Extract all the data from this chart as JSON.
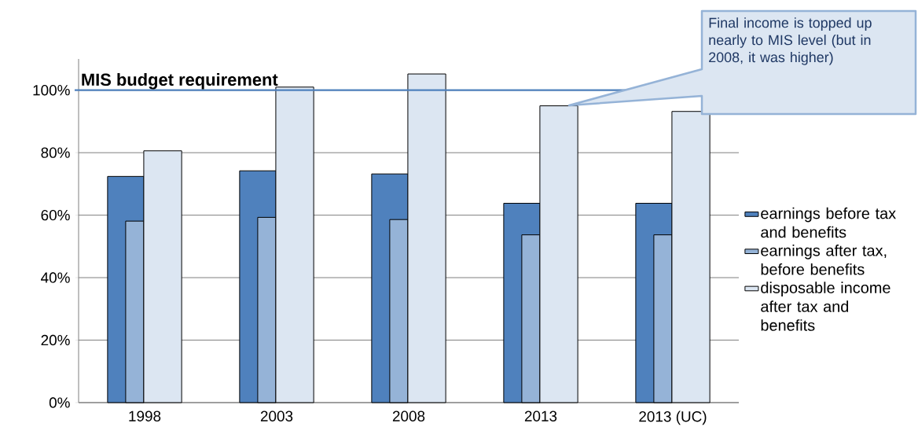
{
  "chart_data": {
    "type": "bar",
    "categories": [
      "1998",
      "2003",
      "2008",
      "2013",
      "2013 (UC)"
    ],
    "series": [
      {
        "name": "earnings before tax and benefits",
        "color": "#4f81bd",
        "values": [
          72.4,
          74.2,
          73.2,
          63.8,
          63.8
        ]
      },
      {
        "name": "earnings after tax, before benefits",
        "color": "#95b3d7",
        "values": [
          58.1,
          59.3,
          58.6,
          53.7,
          53.7
        ]
      },
      {
        "name": "disposable income after tax and benefits",
        "color": "#dce6f2",
        "values": [
          80.6,
          101.0,
          105.2,
          95.0,
          93.2
        ]
      }
    ],
    "ylim": [
      0,
      110
    ],
    "yticks": [
      {
        "value": 0,
        "label": "0%"
      },
      {
        "value": 20,
        "label": "20%"
      },
      {
        "value": 40,
        "label": "40%"
      },
      {
        "value": 60,
        "label": "60%"
      },
      {
        "value": 80,
        "label": "80%"
      },
      {
        "value": 100,
        "label": "100%"
      }
    ],
    "grid": "y",
    "legend": "right",
    "ref_lines": [
      {
        "axis": "y",
        "value": 100,
        "label": "MIS budget requirement",
        "color": "#4f81bd"
      }
    ],
    "annotations": [
      "Final income is topped up nearly to MIS level (but in 2008, it was higher)"
    ]
  }
}
